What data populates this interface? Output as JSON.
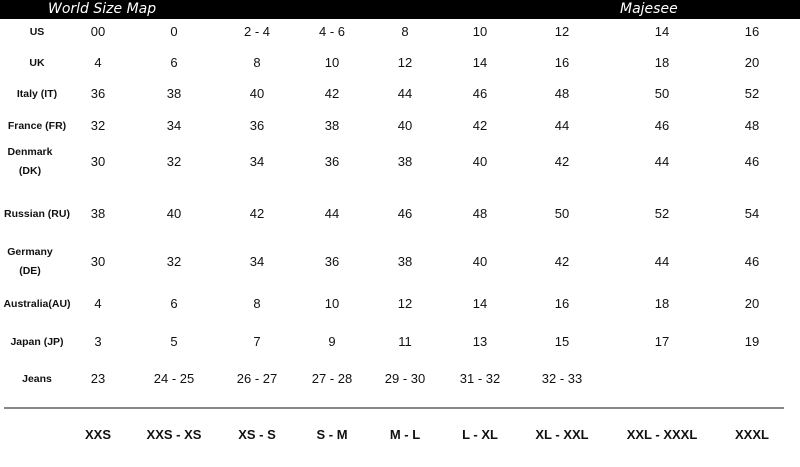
{
  "header": {
    "title": "World Size Map",
    "brand": "Majesee"
  },
  "rows": [
    {
      "label": "US",
      "values": [
        "00",
        "0",
        "2 - 4",
        "4 - 6",
        "8",
        "10",
        "12",
        "14",
        "16"
      ]
    },
    {
      "label": "UK",
      "values": [
        "4",
        "6",
        "8",
        "10",
        "12",
        "14",
        "16",
        "18",
        "20"
      ]
    },
    {
      "label": "Italy (IT)",
      "values": [
        "36",
        "38",
        "40",
        "42",
        "44",
        "46",
        "48",
        "50",
        "52"
      ]
    },
    {
      "label": "France (FR)",
      "values": [
        "32",
        "34",
        "36",
        "38",
        "40",
        "42",
        "44",
        "46",
        "48"
      ]
    },
    {
      "label": "Denmark (DK)",
      "values": [
        "30",
        "32",
        "34",
        "36",
        "38",
        "40",
        "42",
        "44",
        "46"
      ]
    },
    {
      "label": "Russian (RU)",
      "values": [
        "38",
        "40",
        "42",
        "44",
        "46",
        "48",
        "50",
        "52",
        "54"
      ]
    },
    {
      "label": "Germany (DE)",
      "values": [
        "30",
        "32",
        "34",
        "36",
        "38",
        "40",
        "42",
        "44",
        "46"
      ]
    },
    {
      "label": "Australia(AU)",
      "values": [
        "4",
        "6",
        "8",
        "10",
        "12",
        "14",
        "16",
        "18",
        "20"
      ]
    },
    {
      "label": "Japan (JP)",
      "values": [
        "3",
        "5",
        "7",
        "9",
        "11",
        "13",
        "15",
        "17",
        "19"
      ]
    },
    {
      "label": "Jeans",
      "values": [
        "23",
        "24 - 25",
        "26 - 27",
        "27 - 28",
        "29 - 30",
        "31 - 32",
        "32 - 33",
        "",
        ""
      ]
    }
  ],
  "sizes": [
    "XXS",
    "XXS - XS",
    "XS - S",
    "S - M",
    "M - L",
    "L - XL",
    "XL - XXL",
    "XXL - XXXL",
    "XXXL"
  ]
}
